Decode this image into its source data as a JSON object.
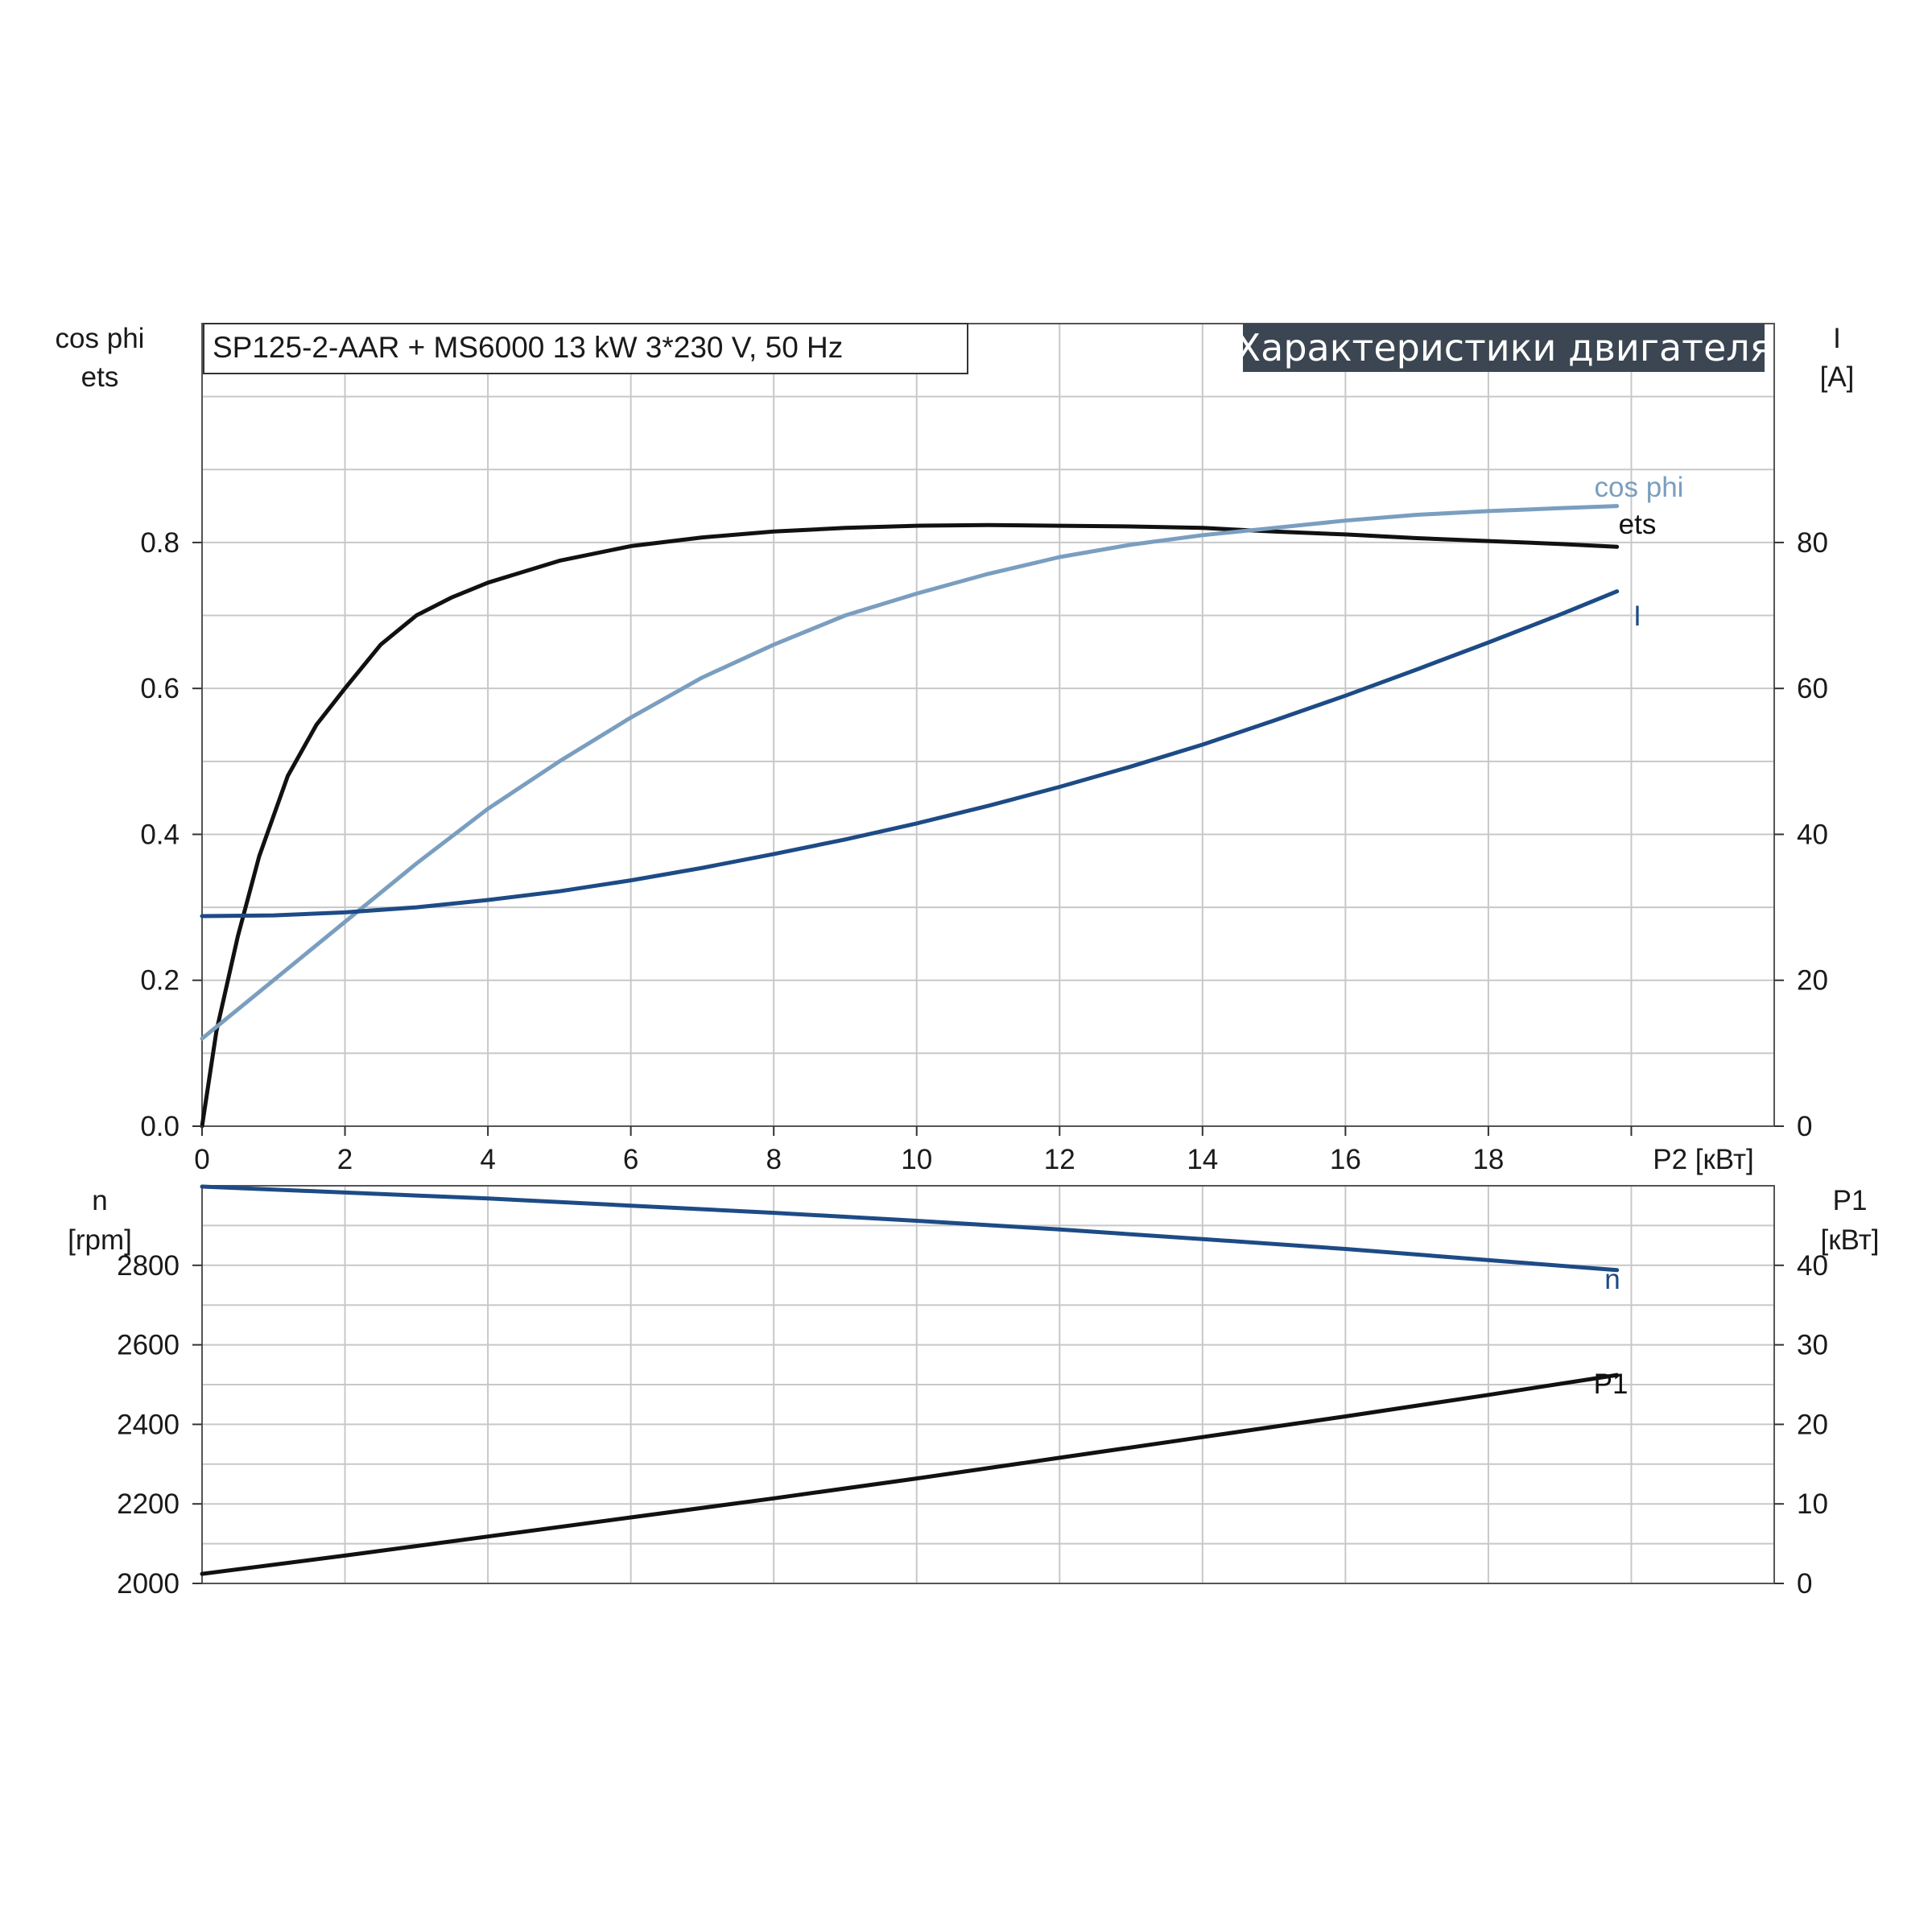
{
  "title": "Характеристики двигателя",
  "subtitle": "SP125-2-AAR + MS6000   13 kW   3*230 V, 50 Hz",
  "colors": {
    "ets": "#111111",
    "cos_phi": "#7a9ebf",
    "I": "#1d4b85",
    "n": "#1d4b85",
    "P1": "#111111",
    "grid": "#c8c8c8",
    "title_bg": "#3b4652"
  },
  "chart_data": [
    {
      "type": "line",
      "title": "Характеристики двигателя",
      "xlabel": "P2 [кВт]",
      "xlim": [
        0,
        22
      ],
      "x_ticks": [
        0,
        2,
        4,
        6,
        8,
        10,
        12,
        14,
        16,
        18
      ],
      "grid": true,
      "left_axis": {
        "label_lines": [
          "cos phi",
          "ets"
        ],
        "ylim": [
          0,
          1.1
        ],
        "ticks": [
          0.0,
          0.2,
          0.4,
          0.6,
          0.8
        ],
        "tick_labels": [
          "0.0",
          "0.2",
          "0.4",
          "0.6",
          "0.8"
        ]
      },
      "right_axis": {
        "label_lines": [
          "I",
          "[A]"
        ],
        "ylim": [
          0,
          110
        ],
        "ticks": [
          0,
          20,
          40,
          60,
          80
        ],
        "tick_labels": [
          "0",
          "20",
          "40",
          "60",
          "80"
        ]
      },
      "series": [
        {
          "name": "ets",
          "axis": "left",
          "x": [
            0,
            0.2,
            0.5,
            0.8,
            1.2,
            1.6,
            2.0,
            2.5,
            3.0,
            3.5,
            4.0,
            5.0,
            6.0,
            7.0,
            8.0,
            9.0,
            10.0,
            11.0,
            12.0,
            13.0,
            14.0,
            15.0,
            16.0,
            17.0,
            18.0,
            19.0,
            19.8
          ],
          "y": [
            0.0,
            0.13,
            0.26,
            0.37,
            0.48,
            0.55,
            0.6,
            0.66,
            0.7,
            0.725,
            0.745,
            0.775,
            0.795,
            0.807,
            0.815,
            0.82,
            0.823,
            0.824,
            0.823,
            0.822,
            0.82,
            0.815,
            0.811,
            0.806,
            0.802,
            0.798,
            0.794
          ]
        },
        {
          "name": "cos phi",
          "axis": "left",
          "x": [
            0,
            1,
            2,
            3,
            4,
            5,
            6,
            7,
            8,
            9,
            10,
            11,
            12,
            13,
            14,
            15,
            16,
            17,
            18,
            19,
            19.8
          ],
          "y": [
            0.12,
            0.2,
            0.28,
            0.36,
            0.435,
            0.5,
            0.56,
            0.615,
            0.66,
            0.7,
            0.73,
            0.757,
            0.78,
            0.797,
            0.81,
            0.82,
            0.83,
            0.838,
            0.843,
            0.847,
            0.85
          ]
        },
        {
          "name": "I",
          "axis": "right",
          "x": [
            0,
            1,
            2,
            3,
            4,
            5,
            6,
            7,
            8,
            9,
            10,
            11,
            12,
            13,
            14,
            15,
            16,
            17,
            18,
            19,
            19.8
          ],
          "y": [
            28.8,
            28.9,
            29.3,
            30.0,
            31.0,
            32.2,
            33.7,
            35.4,
            37.3,
            39.3,
            41.5,
            43.9,
            46.5,
            49.3,
            52.3,
            55.6,
            59.0,
            62.6,
            66.3,
            70.1,
            73.3
          ]
        }
      ],
      "labels": {
        "cos_phi": "cos phi",
        "ets": "ets",
        "I": "I"
      }
    },
    {
      "type": "line",
      "xlim": [
        0,
        22
      ],
      "grid": true,
      "left_axis": {
        "label_lines": [
          "n",
          "[rpm]"
        ],
        "ylim": [
          2000,
          3000
        ],
        "ticks": [
          2000,
          2200,
          2400,
          2600,
          2800
        ],
        "tick_labels": [
          "2000",
          "2200",
          "2400",
          "2600",
          "2800"
        ]
      },
      "right_axis": {
        "label_lines": [
          "P1",
          "[кВт]"
        ],
        "ylim": [
          0,
          50
        ],
        "ticks": [
          0,
          10,
          20,
          30,
          40
        ],
        "tick_labels": [
          "0",
          "10",
          "20",
          "30",
          "40"
        ]
      },
      "series": [
        {
          "name": "n",
          "axis": "left",
          "x": [
            0,
            2,
            4,
            6,
            8,
            10,
            12,
            14,
            16,
            18,
            19.8
          ],
          "y": [
            2998,
            2983,
            2968,
            2950,
            2932,
            2912,
            2890,
            2866,
            2841,
            2813,
            2788
          ]
        },
        {
          "name": "P1",
          "axis": "right",
          "x": [
            0,
            2,
            4,
            6,
            8,
            10,
            12,
            14,
            16,
            18,
            19.8
          ],
          "y": [
            1.2,
            3.5,
            5.9,
            8.3,
            10.7,
            13.2,
            15.8,
            18.4,
            21.0,
            23.7,
            26.2
          ]
        }
      ],
      "labels": {
        "n": "n",
        "P1": "P1"
      }
    }
  ]
}
